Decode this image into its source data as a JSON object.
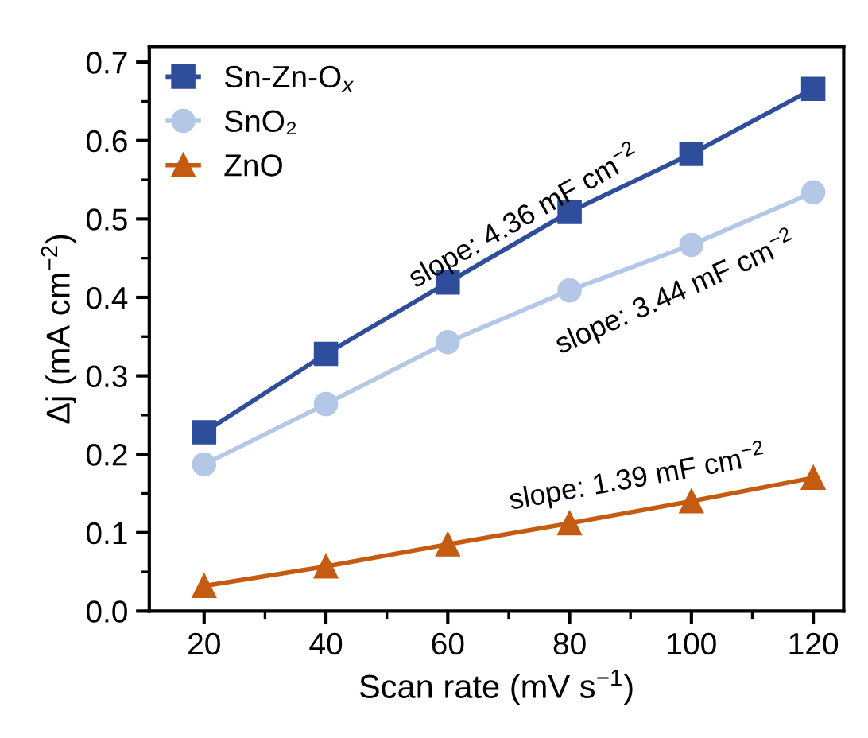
{
  "chart_data": {
    "type": "line",
    "xlabel": "Scan rate (mV s$^{−1}$)",
    "ylabel": "Δj (mA cm$^{−2}$)",
    "x": [
      20,
      40,
      60,
      80,
      100,
      120
    ],
    "series": [
      {
        "name": "Sn-Zn-O$_{x}$",
        "color": "#2e4d9a",
        "marker": "square",
        "values": [
          0.228,
          0.328,
          0.419,
          0.509,
          0.583,
          0.666
        ]
      },
      {
        "name": "SnO₂",
        "color": "#b4c7e7",
        "marker": "circle",
        "values": [
          0.187,
          0.264,
          0.343,
          0.409,
          0.467,
          0.534
        ]
      },
      {
        "name": "ZnO",
        "color": "#c55a11",
        "marker": "triangle",
        "values": [
          0.032,
          0.057,
          0.085,
          0.112,
          0.14,
          0.17
        ]
      }
    ],
    "annotations": [
      "slope: 4.36 mF cm$^{−2}$",
      "slope: 3.44 mF cm$^{−2}$",
      "slope: 1.39 mF cm$^{−2}$"
    ],
    "xlim": [
      11,
      125
    ],
    "xticks": [
      20,
      40,
      60,
      80,
      100,
      120
    ],
    "ylim": [
      0,
      0.72
    ],
    "yticks": [
      {
        "value": 0,
        "label": "0.0"
      },
      0.1,
      0.2,
      0.3,
      0.4,
      0.5,
      0.6,
      0.7
    ],
    "legend": "top left",
    "grid": false,
    "line_style": "solid"
  }
}
